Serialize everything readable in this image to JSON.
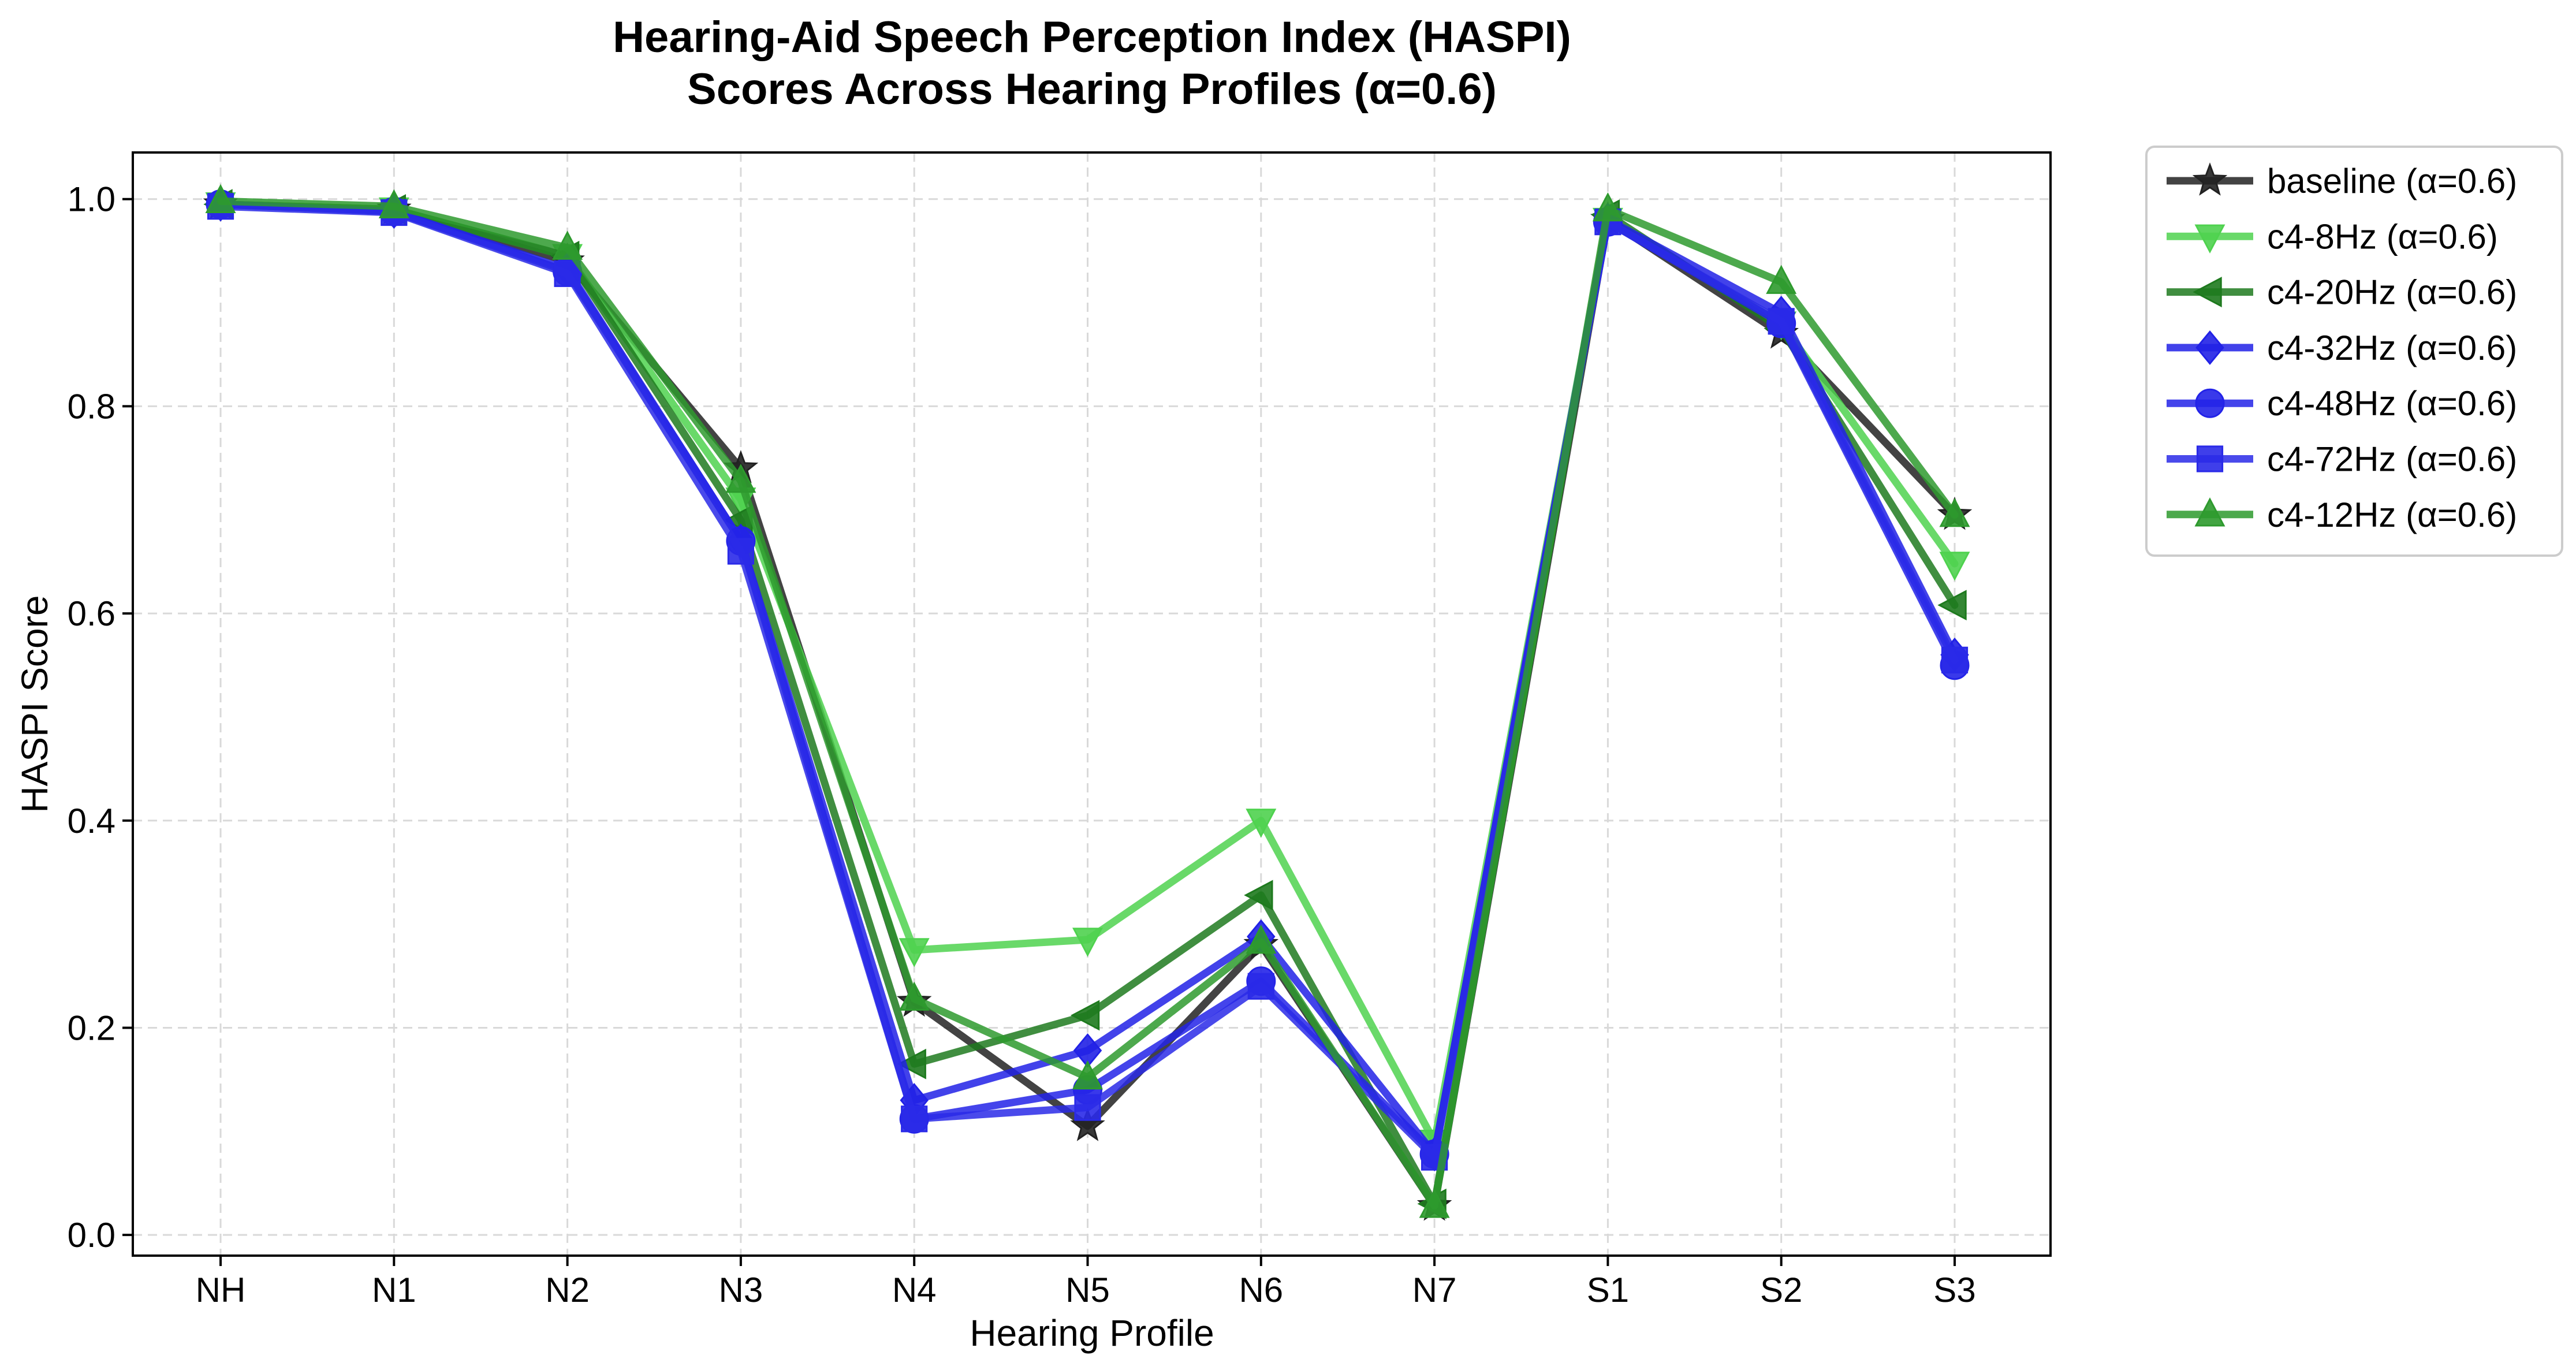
{
  "chart_data": {
    "type": "line",
    "title": [
      "Hearing-Aid Speech Perception Index (HASPI)",
      "Scores Across Hearing Profiles (α=0.6)"
    ],
    "xlabel": "Hearing Profile",
    "ylabel": "HASPI Score",
    "categories": [
      "NH",
      "N1",
      "N2",
      "N3",
      "N4",
      "N5",
      "N6",
      "N7",
      "S1",
      "S2",
      "S3"
    ],
    "ylim": [
      -0.02,
      1.045
    ],
    "yticks": [
      "0.0",
      "0.2",
      "0.4",
      "0.6",
      "0.8",
      "1.0"
    ],
    "grid": true,
    "legend_position": "outside-top-right",
    "series": [
      {
        "name": "baseline (α=0.6)",
        "color": "#222222",
        "marker": "star",
        "values": [
          0.995,
          0.99,
          0.94,
          0.74,
          0.225,
          0.105,
          0.28,
          0.028,
          0.98,
          0.87,
          0.695
        ]
      },
      {
        "name": "c4-8Hz (α=0.6)",
        "color": "#4fd24f",
        "marker": "triangle-down",
        "values": [
          0.995,
          0.99,
          0.945,
          0.71,
          0.275,
          0.285,
          0.4,
          0.09,
          0.98,
          0.88,
          0.648
        ]
      },
      {
        "name": "c4-20Hz (α=0.6)",
        "color": "#1e7a1e",
        "marker": "triangle-left",
        "values": [
          0.995,
          0.99,
          0.945,
          0.69,
          0.165,
          0.212,
          0.328,
          0.03,
          0.985,
          0.875,
          0.608
        ]
      },
      {
        "name": "c4-32Hz (α=0.6)",
        "color": "#2121e6",
        "marker": "diamond",
        "values": [
          0.995,
          0.988,
          0.932,
          0.67,
          0.13,
          0.178,
          0.288,
          0.078,
          0.98,
          0.89,
          0.56
        ]
      },
      {
        "name": "c4-48Hz (α=0.6)",
        "color": "#2323e8",
        "marker": "circle",
        "values": [
          0.995,
          0.988,
          0.93,
          0.67,
          0.112,
          0.14,
          0.245,
          0.078,
          0.978,
          0.88,
          0.55
        ]
      },
      {
        "name": "c4-72Hz (α=0.6)",
        "color": "#2a2ae8",
        "marker": "square",
        "values": [
          0.993,
          0.987,
          0.928,
          0.66,
          0.112,
          0.123,
          0.24,
          0.075,
          0.978,
          0.882,
          0.555
        ]
      },
      {
        "name": "c4-12Hz (α=0.6)",
        "color": "#2e9a2e",
        "marker": "triangle-up",
        "values": [
          0.998,
          0.993,
          0.953,
          0.728,
          0.228,
          0.152,
          0.283,
          0.028,
          0.99,
          0.92,
          0.695
        ]
      }
    ]
  }
}
